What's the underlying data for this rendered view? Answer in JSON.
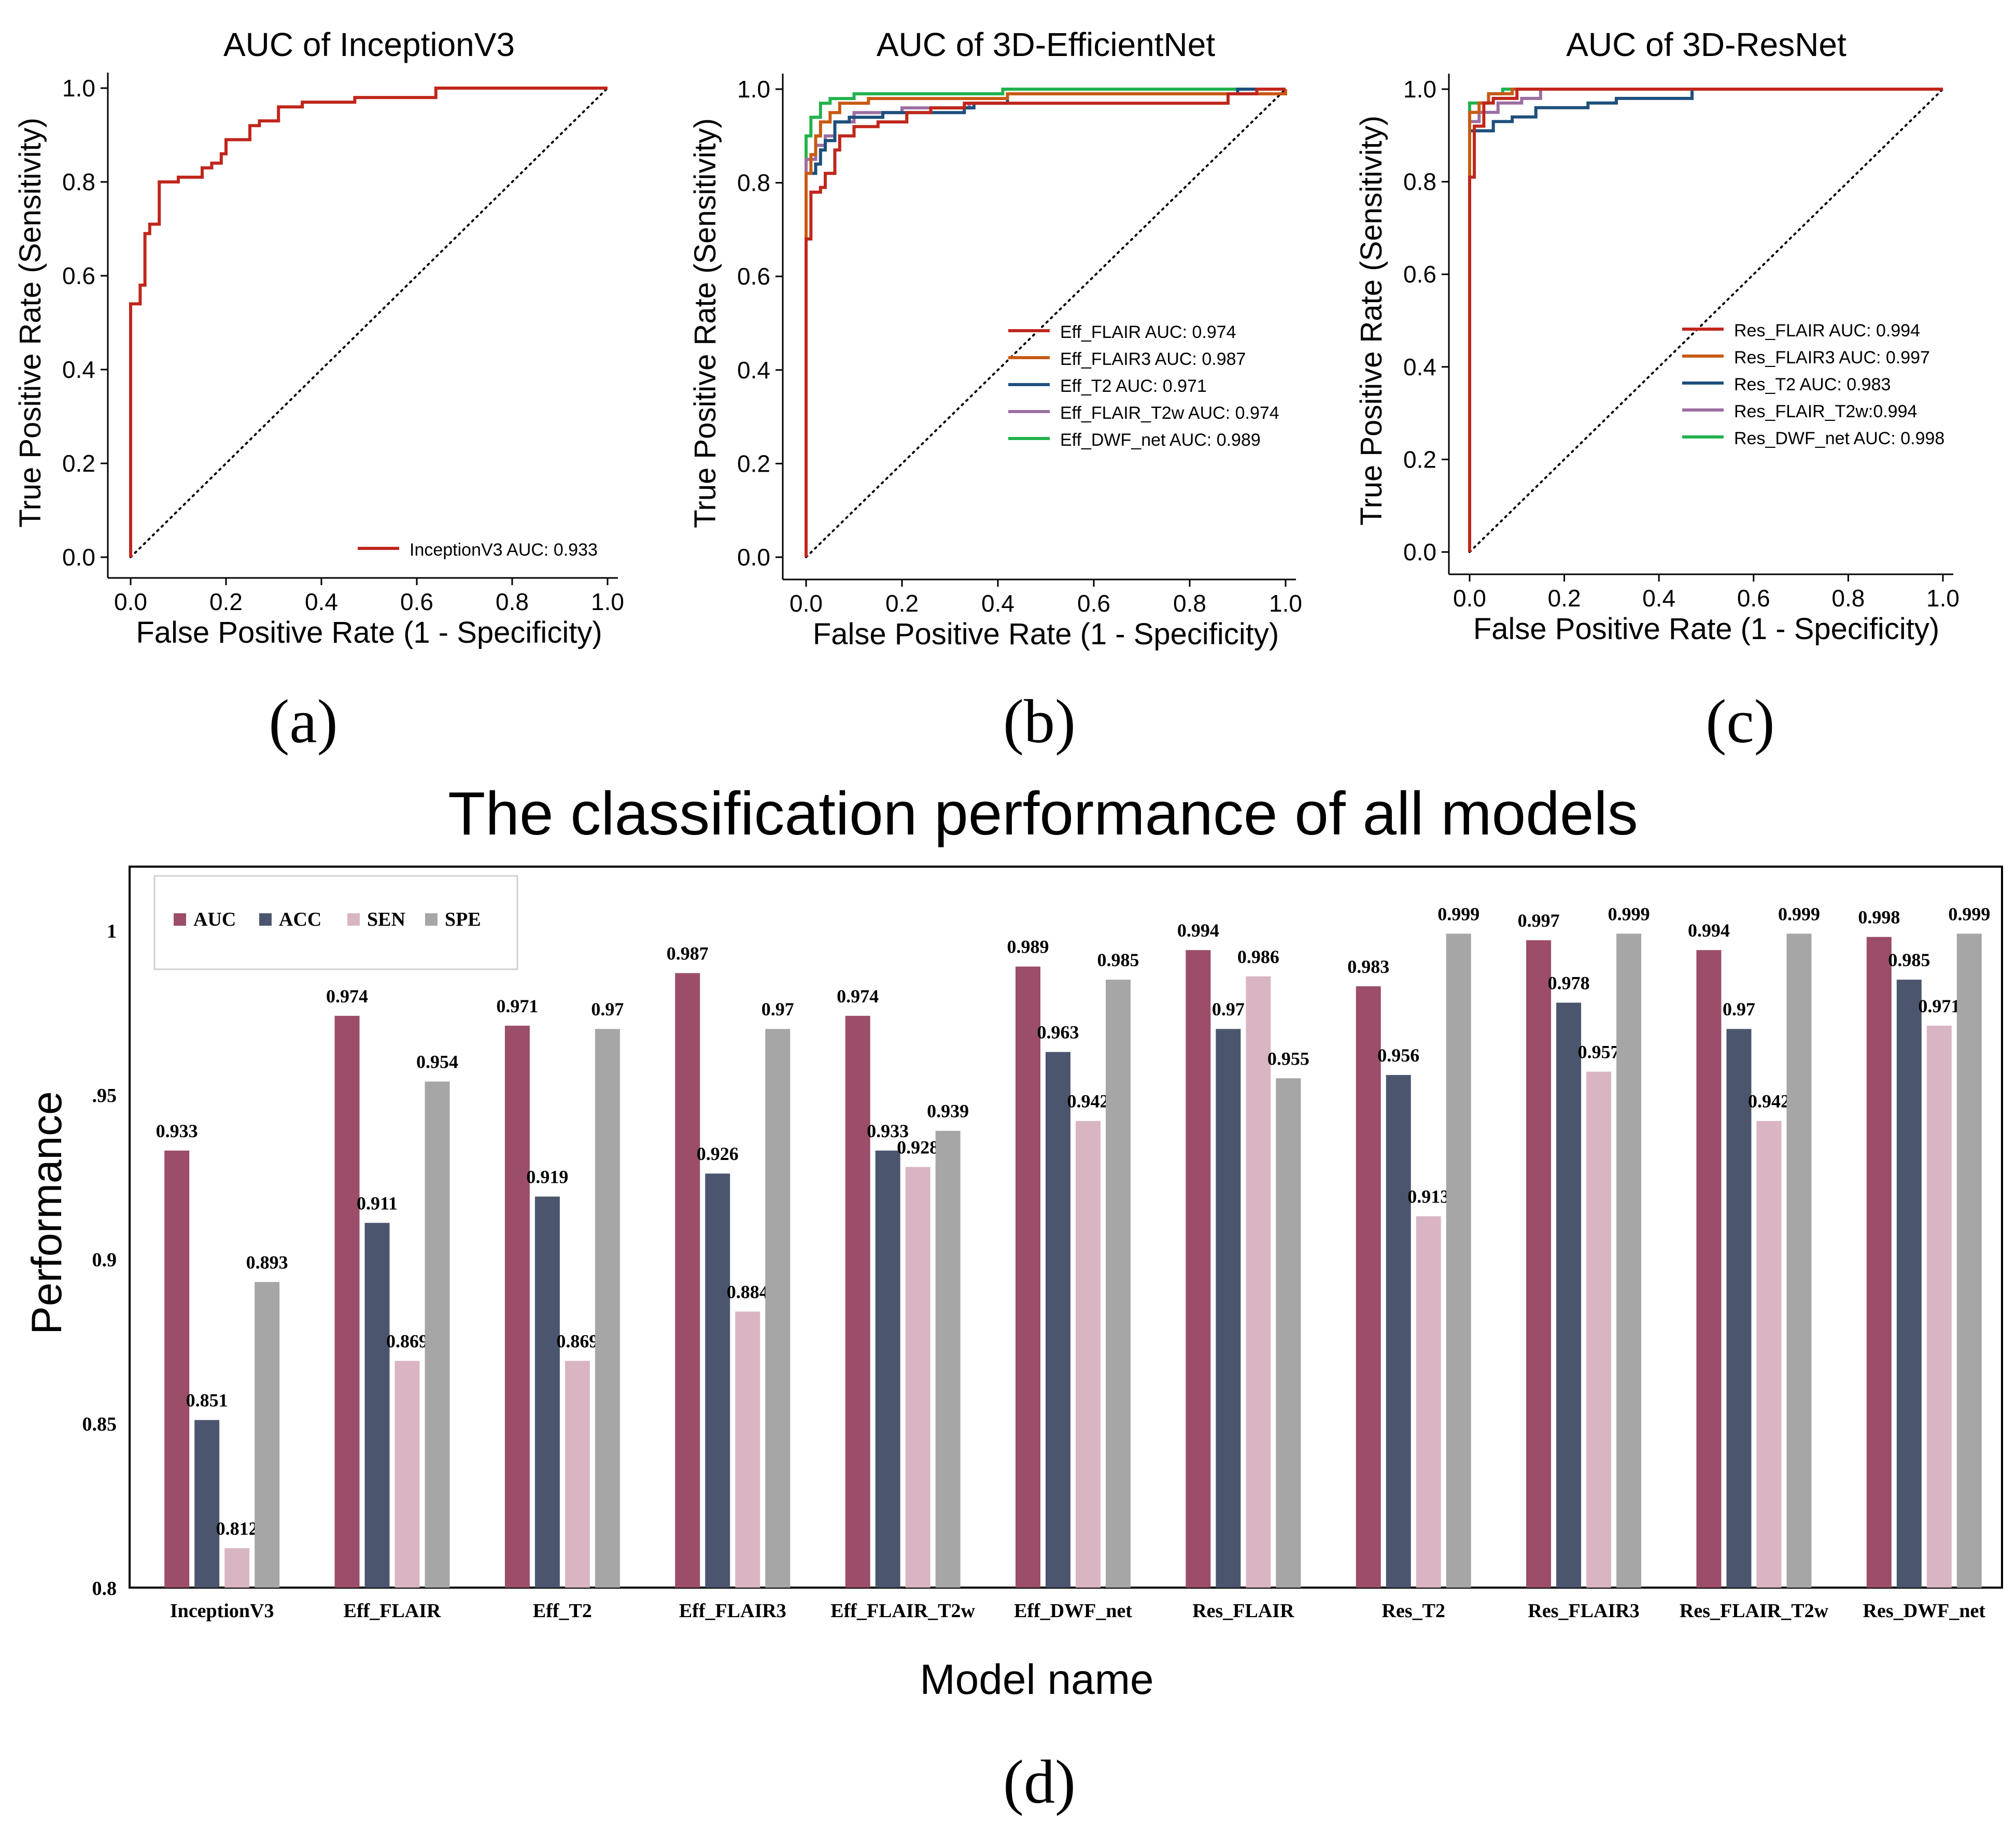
{
  "panel_labels": [
    "(a)",
    "(b)",
    "(c)",
    "(d)"
  ],
  "chart_data": [
    {
      "type": "line",
      "title": "AUC of InceptionV3",
      "xlabel": "False Positive Rate (1 - Specificity)",
      "ylabel": "True Positive Rate (Sensitivity)",
      "xlim": [
        0,
        1
      ],
      "ylim": [
        0,
        1
      ],
      "xticks": [
        "0.0",
        "0.2",
        "0.4",
        "0.6",
        "0.8",
        "1.0"
      ],
      "yticks": [
        "0.0",
        "0.2",
        "0.4",
        "0.6",
        "0.8",
        "1.0"
      ],
      "legend_position": "lower-right",
      "diagonal": "dotted",
      "series": [
        {
          "name": "InceptionV3 AUC: 0.933",
          "color": "#c0261b",
          "points": [
            [
              0,
              0
            ],
            [
              0,
              0.54
            ],
            [
              0.02,
              0.54
            ],
            [
              0.02,
              0.58
            ],
            [
              0.03,
              0.58
            ],
            [
              0.03,
              0.69
            ],
            [
              0.04,
              0.69
            ],
            [
              0.04,
              0.71
            ],
            [
              0.06,
              0.71
            ],
            [
              0.06,
              0.8
            ],
            [
              0.1,
              0.8
            ],
            [
              0.1,
              0.81
            ],
            [
              0.15,
              0.81
            ],
            [
              0.15,
              0.83
            ],
            [
              0.17,
              0.83
            ],
            [
              0.17,
              0.84
            ],
            [
              0.19,
              0.84
            ],
            [
              0.19,
              0.86
            ],
            [
              0.2,
              0.86
            ],
            [
              0.2,
              0.89
            ],
            [
              0.25,
              0.89
            ],
            [
              0.25,
              0.92
            ],
            [
              0.27,
              0.92
            ],
            [
              0.27,
              0.93
            ],
            [
              0.31,
              0.93
            ],
            [
              0.31,
              0.96
            ],
            [
              0.36,
              0.96
            ],
            [
              0.36,
              0.97
            ],
            [
              0.47,
              0.97
            ],
            [
              0.47,
              0.98
            ],
            [
              0.64,
              0.98
            ],
            [
              0.64,
              1.0
            ],
            [
              1,
              1
            ]
          ]
        }
      ]
    },
    {
      "type": "line",
      "title": "AUC of 3D-EfficientNet",
      "xlabel": "False Positive Rate (1 - Specificity)",
      "ylabel": "True Positive Rate (Sensitivity)",
      "xlim": [
        0,
        1
      ],
      "ylim": [
        0,
        1
      ],
      "xticks": [
        "0.0",
        "0.2",
        "0.4",
        "0.6",
        "0.8",
        "1.0"
      ],
      "yticks": [
        "0.0",
        "0.2",
        "0.4",
        "0.6",
        "0.8",
        "1.0"
      ],
      "legend_position": "lower-right",
      "diagonal": "dotted",
      "series": [
        {
          "name": "Eff_FLAIR AUC: 0.974",
          "color": "#c0261b",
          "points": [
            [
              0,
              0
            ],
            [
              0,
              0.68
            ],
            [
              0.01,
              0.68
            ],
            [
              0.01,
              0.78
            ],
            [
              0.03,
              0.78
            ],
            [
              0.03,
              0.79
            ],
            [
              0.04,
              0.79
            ],
            [
              0.04,
              0.82
            ],
            [
              0.06,
              0.82
            ],
            [
              0.06,
              0.87
            ],
            [
              0.07,
              0.87
            ],
            [
              0.07,
              0.9
            ],
            [
              0.1,
              0.9
            ],
            [
              0.1,
              0.92
            ],
            [
              0.15,
              0.92
            ],
            [
              0.15,
              0.93
            ],
            [
              0.21,
              0.93
            ],
            [
              0.21,
              0.95
            ],
            [
              0.26,
              0.95
            ],
            [
              0.26,
              0.96
            ],
            [
              0.33,
              0.96
            ],
            [
              0.33,
              0.97
            ],
            [
              0.88,
              0.97
            ],
            [
              0.88,
              0.99
            ],
            [
              0.94,
              0.99
            ],
            [
              0.94,
              1.0
            ],
            [
              1,
              1
            ]
          ]
        },
        {
          "name": "Eff_FLAIR3 AUC: 0.987",
          "color": "#c85a13",
          "points": [
            [
              0,
              0
            ],
            [
              0,
              0.82
            ],
            [
              0.01,
              0.82
            ],
            [
              0.01,
              0.86
            ],
            [
              0.02,
              0.86
            ],
            [
              0.02,
              0.9
            ],
            [
              0.03,
              0.9
            ],
            [
              0.03,
              0.93
            ],
            [
              0.05,
              0.93
            ],
            [
              0.05,
              0.95
            ],
            [
              0.07,
              0.95
            ],
            [
              0.07,
              0.97
            ],
            [
              0.13,
              0.97
            ],
            [
              0.13,
              0.98
            ],
            [
              0.42,
              0.98
            ],
            [
              0.42,
              0.99
            ],
            [
              1.0,
              0.99
            ],
            [
              1,
              1
            ]
          ]
        },
        {
          "name": "Eff_T2 AUC: 0.971",
          "color": "#1c4f7c",
          "points": [
            [
              0,
              0
            ],
            [
              0,
              0.82
            ],
            [
              0.02,
              0.82
            ],
            [
              0.02,
              0.84
            ],
            [
              0.03,
              0.84
            ],
            [
              0.03,
              0.87
            ],
            [
              0.04,
              0.87
            ],
            [
              0.04,
              0.89
            ],
            [
              0.06,
              0.89
            ],
            [
              0.06,
              0.93
            ],
            [
              0.09,
              0.93
            ],
            [
              0.09,
              0.94
            ],
            [
              0.16,
              0.94
            ],
            [
              0.16,
              0.95
            ],
            [
              0.33,
              0.95
            ],
            [
              0.33,
              0.96
            ],
            [
              0.35,
              0.96
            ],
            [
              0.35,
              0.97
            ],
            [
              0.42,
              0.97
            ],
            [
              0.42,
              0.99
            ],
            [
              0.9,
              0.99
            ],
            [
              0.9,
              1.0
            ],
            [
              1,
              1
            ]
          ]
        },
        {
          "name": "Eff_FLAIR_T2w AUC: 0.974",
          "color": "#9b6ea1",
          "points": [
            [
              0,
              0
            ],
            [
              0,
              0.85
            ],
            [
              0.02,
              0.85
            ],
            [
              0.02,
              0.88
            ],
            [
              0.04,
              0.88
            ],
            [
              0.04,
              0.9
            ],
            [
              0.06,
              0.9
            ],
            [
              0.06,
              0.93
            ],
            [
              0.1,
              0.93
            ],
            [
              0.1,
              0.95
            ],
            [
              0.2,
              0.95
            ],
            [
              0.2,
              0.96
            ],
            [
              0.34,
              0.96
            ],
            [
              0.34,
              0.97
            ],
            [
              0.42,
              0.97
            ],
            [
              0.42,
              0.99
            ],
            [
              0.9,
              0.99
            ],
            [
              0.9,
              1.0
            ],
            [
              1,
              1
            ]
          ]
        },
        {
          "name": "Eff_DWF_net AUC:    0.989",
          "color": "#22b24c",
          "points": [
            [
              0,
              0
            ],
            [
              0,
              0.9
            ],
            [
              0.01,
              0.9
            ],
            [
              0.01,
              0.94
            ],
            [
              0.03,
              0.94
            ],
            [
              0.03,
              0.97
            ],
            [
              0.05,
              0.97
            ],
            [
              0.05,
              0.98
            ],
            [
              0.1,
              0.98
            ],
            [
              0.1,
              0.99
            ],
            [
              0.41,
              0.99
            ],
            [
              0.41,
              1.0
            ],
            [
              1,
              1
            ]
          ]
        }
      ]
    },
    {
      "type": "line",
      "title": "AUC of 3D-ResNet",
      "xlabel": "False Positive Rate (1 - Specificity)",
      "ylabel": "True Positive Rate (Sensitivity)",
      "xlim": [
        0,
        1
      ],
      "ylim": [
        0,
        1
      ],
      "xticks": [
        "0.0",
        "0.2",
        "0.4",
        "0.6",
        "0.8",
        "1.0"
      ],
      "yticks": [
        "0.0",
        "0.2",
        "0.4",
        "0.6",
        "0.8",
        "1.0"
      ],
      "legend_position": "lower-right",
      "diagonal": "dotted",
      "series": [
        {
          "name": "Res_FLAIR AUC: 0.994",
          "color": "#c0261b",
          "points": [
            [
              0,
              0
            ],
            [
              0,
              0.81
            ],
            [
              0.01,
              0.81
            ],
            [
              0.01,
              0.92
            ],
            [
              0.03,
              0.92
            ],
            [
              0.03,
              0.97
            ],
            [
              0.05,
              0.97
            ],
            [
              0.05,
              0.98
            ],
            [
              0.1,
              0.98
            ],
            [
              0.1,
              1.0
            ],
            [
              1,
              1
            ]
          ]
        },
        {
          "name": "Res_FLAIR3 AUC: 0.997",
          "color": "#c85a13",
          "points": [
            [
              0,
              0
            ],
            [
              0,
              0.95
            ],
            [
              0.02,
              0.95
            ],
            [
              0.02,
              0.97
            ],
            [
              0.04,
              0.97
            ],
            [
              0.04,
              0.99
            ],
            [
              0.09,
              0.99
            ],
            [
              0.09,
              1.0
            ],
            [
              1,
              1
            ]
          ]
        },
        {
          "name": "Res_T2 AUC: 0.983",
          "color": "#1c4f7c",
          "points": [
            [
              0,
              0
            ],
            [
              0,
              0.91
            ],
            [
              0.05,
              0.91
            ],
            [
              0.05,
              0.93
            ],
            [
              0.09,
              0.93
            ],
            [
              0.09,
              0.94
            ],
            [
              0.14,
              0.94
            ],
            [
              0.14,
              0.96
            ],
            [
              0.25,
              0.96
            ],
            [
              0.25,
              0.97
            ],
            [
              0.31,
              0.97
            ],
            [
              0.31,
              0.98
            ],
            [
              0.47,
              0.98
            ],
            [
              0.47,
              1.0
            ],
            [
              1,
              1
            ]
          ]
        },
        {
          "name": "Res_FLAIR_T2w:0.994",
          "color": "#9b6ea1",
          "points": [
            [
              0,
              0
            ],
            [
              0,
              0.93
            ],
            [
              0.02,
              0.93
            ],
            [
              0.02,
              0.95
            ],
            [
              0.06,
              0.95
            ],
            [
              0.06,
              0.97
            ],
            [
              0.11,
              0.97
            ],
            [
              0.11,
              0.98
            ],
            [
              0.15,
              0.98
            ],
            [
              0.15,
              1.0
            ],
            [
              1,
              1
            ]
          ]
        },
        {
          "name": "Res_DWF_net AUC:     0.998",
          "color": "#22b24c",
          "points": [
            [
              0,
              0
            ],
            [
              0,
              0.97
            ],
            [
              0.04,
              0.97
            ],
            [
              0.04,
              0.99
            ],
            [
              0.07,
              0.99
            ],
            [
              0.07,
              1.0
            ],
            [
              1,
              1
            ]
          ]
        }
      ]
    },
    {
      "type": "bar",
      "title": "The classification performance of all models",
      "xlabel": "Model  name",
      "ylabel": "Performance",
      "ylim": [
        0.8,
        1.0
      ],
      "yticks": [
        {
          "value": 0.8,
          "label": "0.8"
        },
        {
          "value": 0.85,
          "label": "0.85"
        },
        {
          "value": 0.9,
          "label": "0.9"
        },
        {
          "value": 0.95,
          "label": ".95"
        },
        {
          "value": 1.0,
          "label": "1"
        }
      ],
      "legend_position": "top-left",
      "categories": [
        "InceptionV3",
        "Eff_FLAIR",
        "Eff_T2",
        "Eff_FLAIR3",
        "Eff_FLAIR_T2w",
        "Eff_DWF_net",
        "Res_FLAIR",
        "Res_T2",
        "Res_FLAIR3",
        "Res_FLAIR_T2w",
        "Res_DWF_net"
      ],
      "series": [
        {
          "name": "AUC",
          "color": "#9b4d69",
          "values": [
            0.933,
            0.974,
            0.971,
            0.987,
            0.974,
            0.989,
            0.994,
            0.983,
            0.997,
            0.994,
            0.998
          ],
          "labels": [
            "0.933",
            "0.974",
            "0.971",
            "0.987",
            "0.974",
            "0.989",
            "0.994",
            "0.983",
            "0.997",
            "0.994",
            "0.998"
          ]
        },
        {
          "name": "ACC",
          "color": "#4b566e",
          "values": [
            0.851,
            0.911,
            0.919,
            0.926,
            0.933,
            0.963,
            0.97,
            0.956,
            0.978,
            0.97,
            0.985
          ],
          "labels": [
            "0.851",
            "0.911",
            "0.919",
            "0.926",
            "0.933",
            "0.963",
            "0.97",
            "0.956",
            "0.978",
            "0.97",
            "0.985"
          ]
        },
        {
          "name": "SEN",
          "color": "#d9b5c3",
          "values": [
            0.812,
            0.869,
            0.869,
            0.884,
            0.928,
            0.942,
            0.986,
            0.913,
            0.957,
            0.942,
            0.971
          ],
          "labels": [
            "0.812",
            "0.869",
            "0.869",
            "0.884",
            "0.928",
            "0.942",
            "0.986",
            "0.913",
            "0.957",
            "0.942",
            "0.971"
          ]
        },
        {
          "name": "SPE",
          "color": "#a6a6a6",
          "values": [
            0.893,
            0.954,
            0.97,
            0.97,
            0.939,
            0.985,
            0.955,
            0.999,
            0.999,
            0.999,
            0.999
          ],
          "labels": [
            "0.893",
            "0.954",
            "0.97",
            "0.97",
            "0.939",
            "0.985",
            "0.955",
            "0.999",
            "0.999",
            "0.999",
            "0.999"
          ]
        }
      ]
    }
  ]
}
